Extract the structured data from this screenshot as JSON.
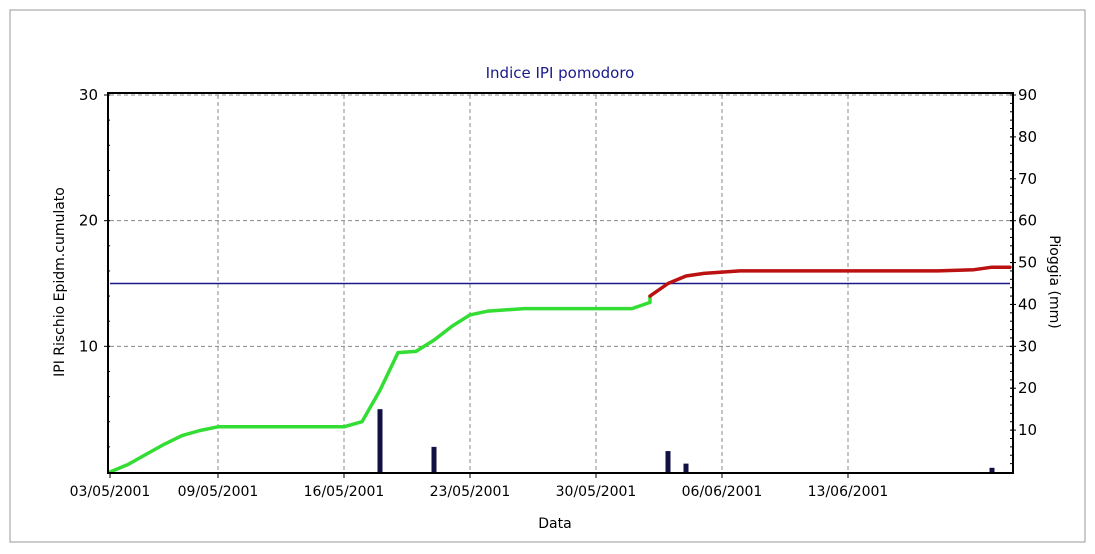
{
  "chart_data": {
    "type": "line",
    "title": "Indice IPI pomodoro",
    "xlabel": "Data",
    "ylabel_left": "IPI Rischio Epidm.cumulato",
    "ylabel_right": "Pioggia (mm)",
    "x_axis": {
      "type": "date",
      "range": [
        "2001-05-03",
        "2001-06-22"
      ],
      "tick_labels": [
        "03/05/2001",
        "09/05/2001",
        "16/05/2001",
        "23/05/2001",
        "30/05/2001",
        "06/06/2001",
        "13/06/2001"
      ],
      "tick_dates": [
        "2001-05-03",
        "2001-05-09",
        "2001-05-16",
        "2001-05-23",
        "2001-05-30",
        "2001-06-06",
        "2001-06-13"
      ]
    },
    "y_left": {
      "range": [
        0,
        30
      ],
      "tick_labels": [
        "10",
        "20",
        "30"
      ],
      "tick_values": [
        10,
        20,
        30
      ]
    },
    "y_right": {
      "range": [
        0,
        90
      ],
      "tick_labels": [
        "10",
        "20",
        "30",
        "40",
        "50",
        "60",
        "70",
        "80",
        "90"
      ],
      "tick_values": [
        10,
        20,
        30,
        40,
        50,
        60,
        70,
        80,
        90
      ]
    },
    "grid": true,
    "threshold": {
      "value": 15,
      "color": "#1a1a8c"
    },
    "series": [
      {
        "color": "#33dd33",
        "points": [
          [
            "2001-05-03",
            0.0
          ],
          [
            "2001-05-04",
            0.6
          ],
          [
            "2001-05-05",
            1.4
          ],
          [
            "2001-05-06",
            2.2
          ],
          [
            "2001-05-07",
            2.9
          ],
          [
            "2001-05-08",
            3.3
          ],
          [
            "2001-05-09",
            3.6
          ],
          [
            "2001-05-11",
            3.6
          ],
          [
            "2001-05-13",
            3.6
          ],
          [
            "2001-05-15",
            3.6
          ],
          [
            "2001-05-16",
            3.6
          ],
          [
            "2001-05-17",
            4.0
          ],
          [
            "2001-05-18",
            6.5
          ],
          [
            "2001-05-19",
            9.5
          ],
          [
            "2001-05-20",
            9.6
          ],
          [
            "2001-05-21",
            10.5
          ],
          [
            "2001-05-22",
            11.6
          ],
          [
            "2001-05-23",
            12.5
          ],
          [
            "2001-05-24",
            12.8
          ],
          [
            "2001-05-26",
            13.0
          ],
          [
            "2001-05-28",
            13.0
          ],
          [
            "2001-05-30",
            13.0
          ],
          [
            "2001-06-01",
            13.0
          ],
          [
            "2001-06-02",
            13.5
          ],
          [
            "2001-06-02",
            14.0
          ]
        ]
      },
      {
        "color": "#bb1111",
        "points": [
          [
            "2001-06-02",
            14.0
          ],
          [
            "2001-06-03",
            15.0
          ],
          [
            "2001-06-04",
            15.6
          ],
          [
            "2001-06-05",
            15.8
          ],
          [
            "2001-06-07",
            16.0
          ],
          [
            "2001-06-10",
            16.0
          ],
          [
            "2001-06-14",
            16.0
          ],
          [
            "2001-06-18",
            16.0
          ],
          [
            "2001-06-20",
            16.1
          ],
          [
            "2001-06-21",
            16.3
          ],
          [
            "2001-06-22",
            16.3
          ]
        ]
      }
    ],
    "rain_bars": {
      "color": "#111144",
      "points": [
        [
          "2001-05-18",
          15
        ],
        [
          "2001-05-21",
          6
        ],
        [
          "2001-06-03",
          5
        ],
        [
          "2001-06-04",
          2
        ],
        [
          "2001-06-21",
          1
        ]
      ]
    }
  }
}
